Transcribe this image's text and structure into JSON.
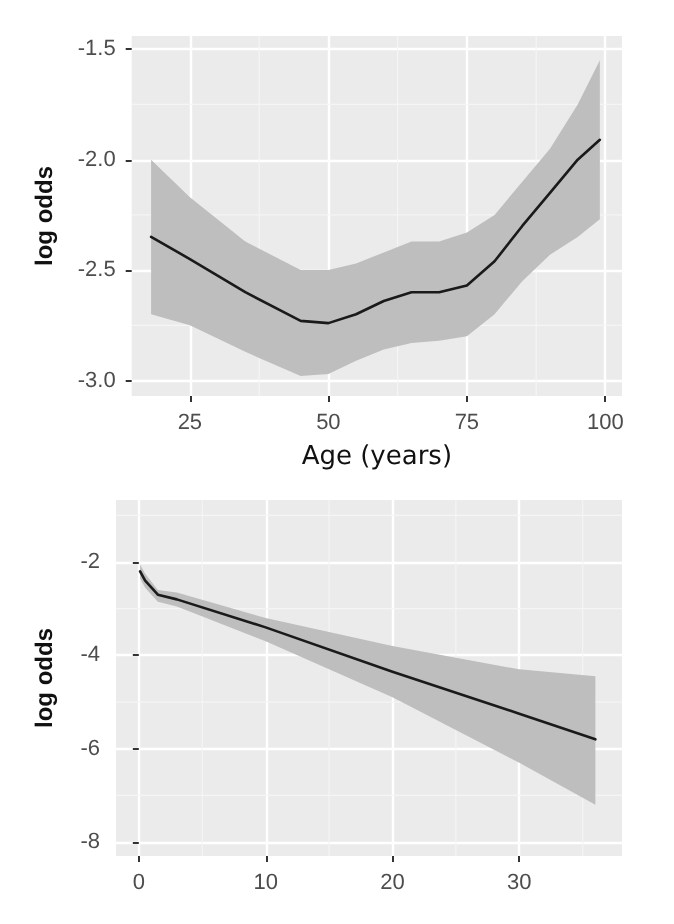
{
  "chart_data": [
    {
      "type": "line",
      "xlabel": "Age (years)",
      "ylabel": "log odds",
      "x": [
        18,
        25,
        35,
        45,
        50,
        55,
        60,
        65,
        70,
        75,
        80,
        85,
        90,
        95,
        99
      ],
      "xlim": [
        14.5,
        103
      ],
      "ylim": [
        -3.07,
        -1.44
      ],
      "xticks": [
        25,
        50,
        75,
        100
      ],
      "yticks": [
        {
          "value": -3,
          "label": "-3.0"
        },
        {
          "value": -2.5,
          "label": "-2.5"
        },
        {
          "value": -2,
          "label": "-2.0"
        },
        {
          "value": -1.5,
          "label": "-1.5"
        }
      ],
      "grid": true,
      "series": [
        {
          "color": "#1a1a1a",
          "values": [
            -2.35,
            -2.45,
            -2.6,
            -2.73,
            -2.74,
            -2.7,
            -2.64,
            -2.6,
            -2.6,
            -2.57,
            -2.46,
            -2.3,
            -2.15,
            -2.0,
            -1.91
          ],
          "lower": [
            -2.7,
            -2.75,
            -2.87,
            -2.98,
            -2.97,
            -2.91,
            -2.86,
            -2.83,
            -2.82,
            -2.8,
            -2.7,
            -2.55,
            -2.43,
            -2.35,
            -2.27
          ],
          "upper": [
            -2.0,
            -2.17,
            -2.37,
            -2.5,
            -2.5,
            -2.47,
            -2.42,
            -2.37,
            -2.37,
            -2.33,
            -2.25,
            -2.1,
            -1.95,
            -1.75,
            -1.55
          ]
        }
      ]
    },
    {
      "type": "line",
      "ylabel": "log odds",
      "x": [
        0.1,
        0.5,
        1.5,
        3,
        10,
        20,
        30,
        36
      ],
      "xlim": [
        -1.8,
        38.1
      ],
      "ylim": [
        -8.3,
        -0.67
      ],
      "xticks": [
        0,
        10,
        20,
        30
      ],
      "yticks": [
        -8,
        -6,
        -4,
        -2
      ],
      "grid": true,
      "series": [
        {
          "color": "#1a1a1a",
          "values": [
            -2.2,
            -2.4,
            -2.7,
            -2.8,
            -3.4,
            -4.35,
            -5.25,
            -5.8
          ],
          "lower": [
            -2.35,
            -2.55,
            -2.85,
            -2.95,
            -3.7,
            -4.9,
            -6.3,
            -7.2
          ],
          "upper": [
            -2.05,
            -2.25,
            -2.6,
            -2.65,
            -3.2,
            -3.8,
            -4.3,
            -4.45
          ]
        }
      ]
    }
  ]
}
